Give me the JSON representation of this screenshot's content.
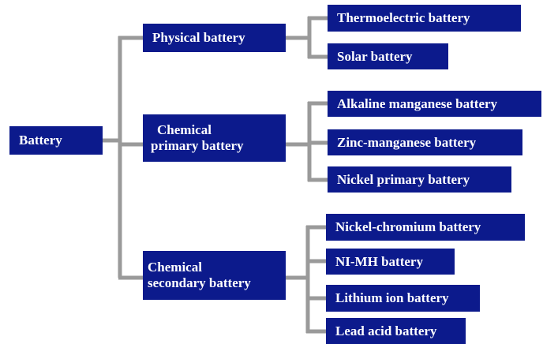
{
  "root": {
    "label": "Battery"
  },
  "groups": [
    {
      "label_lines": [
        "Physical battery"
      ],
      "items": [
        "Thermoelectric battery",
        "Solar battery"
      ]
    },
    {
      "label_lines": [
        "Chemical",
        "primary battery"
      ],
      "items": [
        "Alkaline manganese battery",
        "Zinc-manganese battery",
        "Nickel primary battery"
      ]
    },
    {
      "label_lines": [
        "Chemical",
        "secondary battery"
      ],
      "items": [
        "Nickel-chromium battery",
        "NI-MH battery",
        "Lithium ion battery",
        "Lead acid battery"
      ]
    }
  ]
}
